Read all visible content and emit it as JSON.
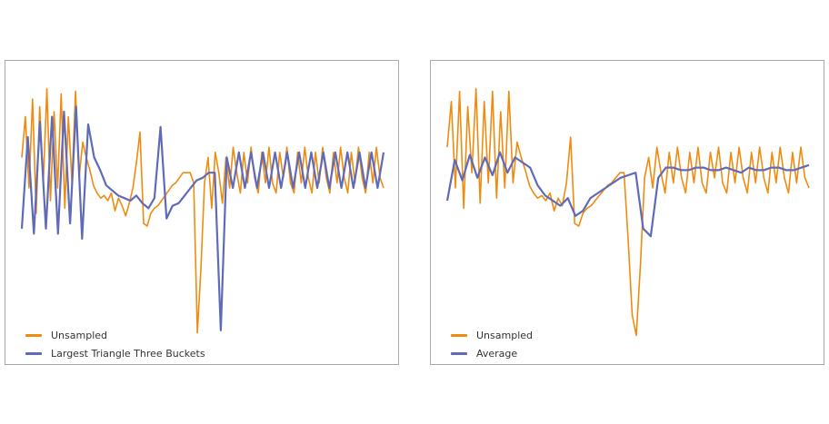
{
  "colors": {
    "unsampled": "#ef8c10",
    "downsampled": "#5f6bb8"
  },
  "chart_data": [
    {
      "type": "line",
      "legend_position": "bottom-left",
      "grid": false,
      "ylim": [
        0,
        100
      ],
      "legend": [
        "Unsampled",
        "Largest Triangle Three Buckets"
      ],
      "series": [
        {
          "name": "Unsampled",
          "values": [
            72,
            88,
            60,
            95,
            50,
            92,
            62,
            99,
            55,
            90,
            60,
            97,
            52,
            88,
            62,
            98,
            64,
            78,
            72,
            67,
            61,
            58,
            56,
            57,
            55,
            58,
            51,
            56,
            53,
            49,
            54,
            60,
            70,
            82,
            46,
            45,
            50,
            52,
            53,
            55,
            57,
            59,
            61,
            62,
            64,
            66,
            66,
            66,
            62,
            3,
            28,
            62,
            72,
            52,
            74,
            66,
            54,
            72,
            60,
            76,
            66,
            58,
            74,
            62,
            76,
            64,
            58,
            74,
            62,
            76,
            62,
            58,
            74,
            64,
            76,
            62,
            58,
            74,
            62,
            76,
            64,
            58,
            74,
            62,
            76,
            64,
            58,
            74,
            62,
            76,
            64,
            58,
            74,
            62,
            76,
            64,
            58,
            74,
            62,
            76,
            64,
            60
          ]
        },
        {
          "name": "Largest Triangle Three Buckets",
          "values": [
            44,
            80,
            42,
            86,
            44,
            88,
            42,
            90,
            46,
            92,
            40,
            85,
            72,
            67,
            61,
            59,
            57,
            56,
            55,
            57,
            54,
            52,
            56,
            84,
            48,
            53,
            54,
            57,
            60,
            63,
            64,
            66,
            66,
            4,
            72,
            60,
            74,
            60,
            74,
            60,
            74,
            60,
            74,
            60,
            74,
            60,
            74,
            60,
            74,
            60,
            74,
            60,
            74,
            60,
            74,
            60,
            74,
            60,
            74,
            60,
            74
          ]
        }
      ]
    },
    {
      "type": "line",
      "legend_position": "bottom-left",
      "grid": false,
      "ylim": [
        0,
        100
      ],
      "legend": [
        "Unsampled",
        "Average"
      ],
      "series": [
        {
          "name": "Unsampled",
          "values": [
            76,
            94,
            60,
            98,
            52,
            92,
            66,
            99,
            54,
            94,
            62,
            98,
            56,
            90,
            60,
            98,
            62,
            78,
            72,
            67,
            61,
            58,
            56,
            57,
            55,
            58,
            51,
            56,
            53,
            62,
            80,
            46,
            45,
            50,
            52,
            53,
            55,
            57,
            59,
            61,
            62,
            64,
            66,
            66,
            40,
            10,
            2,
            30,
            64,
            72,
            60,
            76,
            66,
            58,
            74,
            62,
            76,
            64,
            58,
            74,
            62,
            76,
            62,
            58,
            74,
            64,
            76,
            62,
            58,
            74,
            62,
            76,
            64,
            58,
            74,
            62,
            76,
            64,
            58,
            74,
            62,
            76,
            64,
            58,
            74,
            62,
            76,
            64,
            60
          ]
        },
        {
          "name": "Average",
          "values": [
            55,
            71,
            63,
            73,
            64,
            72,
            65,
            74,
            66,
            72,
            70,
            68,
            61,
            57,
            55,
            53,
            56,
            49,
            51,
            56,
            58,
            60,
            62,
            64,
            65,
            66,
            44,
            41,
            64,
            68,
            68,
            67,
            67,
            68,
            68,
            67,
            67,
            68,
            67,
            66,
            68,
            67,
            67,
            68,
            68,
            67,
            67,
            68,
            69
          ]
        }
      ]
    }
  ]
}
